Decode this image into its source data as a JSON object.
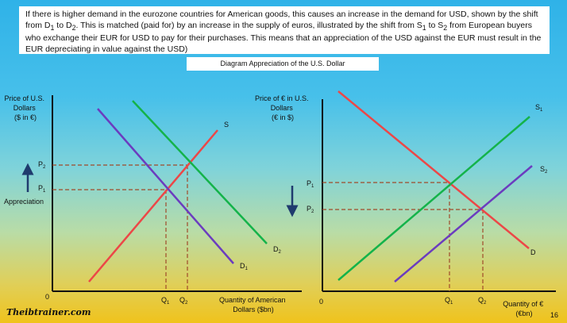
{
  "explanation": {
    "part1": "If there is higher demand in the eurozone countries for American goods, this causes an increase in the demand for USD, shown by the shift from D",
    "part2": " to D",
    "part3": ". This is matched (paid for) by an increase in the supply of euros, illustrated by the shift from S",
    "part4": " to S",
    "part5": " from European buyers who exchange their EUR for USD to pay for their purchases. This means that an appreciation of the USD against the EUR must result in the EUR depreciating in value against the USD)",
    "sub1": "1",
    "sub2": "2"
  },
  "diagram_title": "Diagram Appreciation of the U.S. Dollar",
  "left_chart": {
    "ylabel_lines": [
      "Price of U.S.",
      "Dollars",
      "($ in €)"
    ],
    "xlabel_lines": [
      "Quantity of American",
      "Dollars ($bn)"
    ],
    "origin": "0",
    "price_labels": [
      "P",
      "P"
    ],
    "price_subs": [
      "2",
      "1"
    ],
    "quantity_labels": [
      "Q",
      "Q"
    ],
    "quantity_subs": [
      "1",
      "2"
    ],
    "curve_labels": {
      "supply": "S",
      "d2": "D",
      "d2_sub": "2",
      "d1": "D",
      "d1_sub": "1"
    },
    "annotation": "Appreciation",
    "arrow_direction": "up"
  },
  "right_chart": {
    "ylabel_lines": [
      "Price of € in U.S.",
      "Dollars",
      "(€ in $)"
    ],
    "xlabel_lines": [
      "Quantity of €",
      "(€bn)"
    ],
    "origin": "0",
    "price_labels": [
      "P",
      "P"
    ],
    "price_subs": [
      "1",
      "2"
    ],
    "quantity_labels": [
      "Q",
      "Q"
    ],
    "quantity_subs": [
      "1",
      "2"
    ],
    "curve_labels": {
      "s1": "S",
      "s1_sub": "1",
      "s2": "S",
      "s2_sub": "2",
      "demand": "D"
    },
    "arrow_direction": "down"
  },
  "footer": {
    "brand": "Theibtrainer.com",
    "page_number": "16"
  },
  "colors": {
    "supply_line": "#ec4747",
    "demand_shifted": "#14b34a",
    "demand_original": "#6b3cbf",
    "guide_line": "#a04a2a",
    "arrow": "#1f3b6e",
    "axis": "#111111"
  }
}
